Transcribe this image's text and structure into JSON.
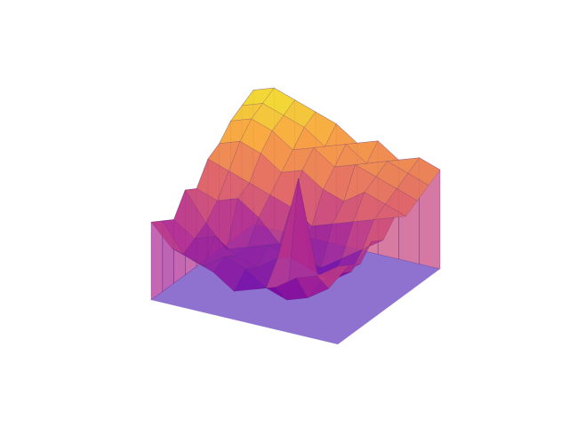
{
  "chart_data": {
    "type": "surface",
    "projection": "3d",
    "axes_visible": false,
    "grid": false,
    "legend": "none",
    "colormap": "plasma",
    "title": "",
    "xlabel": "",
    "ylabel": "",
    "zlabel": "",
    "xlim": [
      0,
      1
    ],
    "ylim": [
      0,
      1
    ],
    "zlim": [
      0,
      1
    ],
    "x": [
      0,
      0.111,
      0.222,
      0.333,
      0.444,
      0.556,
      0.667,
      0.778,
      0.889,
      1
    ],
    "y": [
      0,
      0.111,
      0.222,
      0.333,
      0.444,
      0.556,
      0.667,
      0.778,
      0.889,
      1
    ],
    "z": [
      [
        0.55,
        0.45,
        0.4,
        0.3,
        0.25,
        0.2,
        0.3,
        0.35,
        0.4,
        0.55
      ],
      [
        0.5,
        0.3,
        0.2,
        0.15,
        0.2,
        0.3,
        0.35,
        0.25,
        0.3,
        0.5
      ],
      [
        0.45,
        0.35,
        0.25,
        0.95,
        0.35,
        0.25,
        0.3,
        0.4,
        0.35,
        0.45
      ],
      [
        0.55,
        0.3,
        0.2,
        0.25,
        0.3,
        0.35,
        0.3,
        0.25,
        0.4,
        0.6
      ],
      [
        0.5,
        0.4,
        0.3,
        0.2,
        0.25,
        0.3,
        0.45,
        0.55,
        0.5,
        0.55
      ],
      [
        0.6,
        0.55,
        0.5,
        0.45,
        0.4,
        0.5,
        0.55,
        0.6,
        0.65,
        0.7
      ],
      [
        0.55,
        0.6,
        0.65,
        0.55,
        0.6,
        0.7,
        0.65,
        0.75,
        0.8,
        0.75
      ],
      [
        0.6,
        0.65,
        0.7,
        0.75,
        0.7,
        0.8,
        0.75,
        0.85,
        0.9,
        0.85
      ],
      [
        0.65,
        0.7,
        0.75,
        0.7,
        0.8,
        0.75,
        0.85,
        0.9,
        0.95,
        0.9
      ],
      [
        0.7,
        0.75,
        0.7,
        0.8,
        0.75,
        0.85,
        0.9,
        0.95,
        1.0,
        0.95
      ]
    ]
  },
  "colors": {
    "background": "#ffffff",
    "floor": "#7b58c8",
    "wall": "#8a3fc0",
    "colormap_stops": [
      "#0d0887",
      "#6a00a8",
      "#b12a90",
      "#e16462",
      "#fca636",
      "#f0f921"
    ]
  }
}
